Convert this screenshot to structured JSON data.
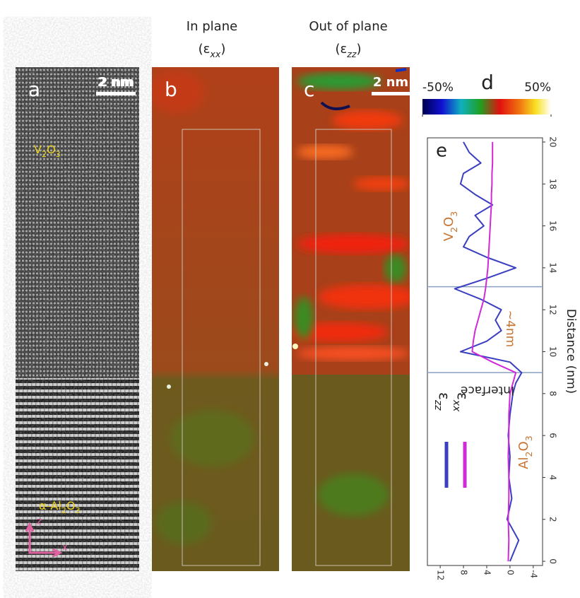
{
  "panels": {
    "a": {
      "label": "a",
      "scale_bar": "2 nm",
      "top_phase": [
        "V",
        "2",
        "O",
        "3"
      ],
      "bottom_phase": [
        "α-Al",
        "2",
        "O",
        "3"
      ],
      "axes": [
        "z",
        "x"
      ]
    },
    "b": {
      "label": "b",
      "scale_bar": "2 nm",
      "title": "In plane",
      "symbol": "(ε",
      "subscript": "xx",
      "close": ")"
    },
    "c": {
      "label": "c",
      "scale_bar": "2 nm",
      "title": "Out of plane",
      "symbol": "(ε",
      "subscript": "zz",
      "close": ")"
    },
    "d": {
      "label": "d",
      "lim": [
        -50,
        50
      ],
      "ticks": [
        {
          "value": -50,
          "label": "-50%"
        },
        {
          "value": 50,
          "label": "50%"
        }
      ]
    }
  },
  "chart_data": {
    "type": "line",
    "panel_label": "e",
    "x_title": "Distance (nm)",
    "x": [
      0,
      1,
      2,
      3,
      4,
      5,
      6,
      7,
      8,
      8.5,
      9,
      9.5,
      10,
      10.5,
      11,
      11.5,
      12,
      12.5,
      13,
      13.5,
      14,
      14.5,
      15,
      15.5,
      16,
      16.5,
      17,
      17.5,
      18,
      18.5,
      19,
      19.5,
      20
    ],
    "xlim": [
      -0.2,
      20.2
    ],
    "xticks": [
      0,
      2,
      4,
      6,
      8,
      10,
      12,
      14,
      16,
      18,
      20
    ],
    "ylim": [
      14.2,
      -5.6
    ],
    "yticks": [
      12,
      8,
      4,
      0,
      -4
    ],
    "marker_lines": [
      9,
      13.1
    ],
    "series": [
      {
        "name": "ε",
        "subscript": "zz",
        "color": "#3a3ec0",
        "values": [
          0,
          -1.5,
          0.5,
          -0.3,
          0.2,
          0,
          0.3,
          0,
          -0.5,
          -1,
          -2,
          0,
          8.5,
          4,
          1.5,
          2.5,
          1.5,
          5,
          9.5,
          4,
          -1,
          4,
          8,
          7,
          4.5,
          6,
          3,
          6,
          8.5,
          8,
          5,
          7,
          8
        ]
      },
      {
        "name": "ε",
        "subscript": "xx",
        "color": "#d02ad8",
        "values": [
          0.3,
          0.2,
          0.3,
          0.2,
          0.2,
          0.3,
          0.2,
          0.2,
          0,
          -0.5,
          -1,
          3,
          6.5,
          6.3,
          6,
          5.5,
          5,
          4.5,
          4.2,
          4,
          3.8,
          3.7,
          3.6,
          3.5,
          3.4,
          3.3,
          3.2,
          3.2,
          3.1,
          3.1,
          3,
          3,
          3
        ]
      }
    ],
    "annotations": {
      "top_phase": [
        "V",
        "2",
        "O",
        "3"
      ],
      "width": "~4nm",
      "interface": "Interface",
      "bottom_phase": [
        "Al",
        "2",
        "O",
        "3"
      ]
    }
  }
}
